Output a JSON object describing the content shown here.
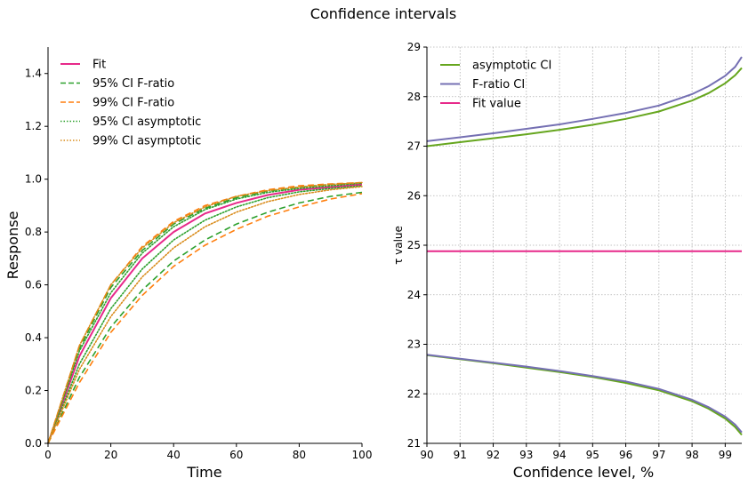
{
  "title": "Confidence intervals",
  "colors": {
    "fit": "#e7298a",
    "f95": "#1b9e77",
    "f99": "#d95f02",
    "asym_green": "#66a61e",
    "fratio_purple": "#7570b3"
  },
  "chart_data": [
    {
      "type": "line",
      "xlabel": "Time",
      "ylabel": "Response",
      "xlim": [
        0,
        100
      ],
      "ylim": [
        0,
        1.5
      ],
      "xticks": [
        "0",
        "20",
        "40",
        "60",
        "80",
        "100"
      ],
      "yticks": [
        "0.0",
        "0.2",
        "0.4",
        "0.6",
        "0.8",
        "1.0",
        "1.2",
        "1.4"
      ],
      "grid": false,
      "legend_position": "top-left",
      "x": [
        0,
        10,
        20,
        30,
        40,
        50,
        60,
        70,
        80,
        90,
        100
      ],
      "series": [
        {
          "name": "Fit",
          "style": "solid",
          "color": "#e7298a",
          "values": [
            0,
            0.33,
            0.55,
            0.7,
            0.8,
            0.87,
            0.91,
            0.94,
            0.96,
            0.97,
            0.98
          ]
        },
        {
          "name": "95% CI F-ratio",
          "style": "dashed",
          "color": "#2ca02c",
          "values": [
            0,
            0.36,
            0.59,
            0.73,
            0.83,
            0.89,
            0.93,
            0.955,
            0.97,
            0.98,
            0.985
          ]
        },
        {
          "name": "95% CI F-ratio",
          "style": "dashed",
          "color": "#2ca02c",
          "values": [
            0,
            0.25,
            0.44,
            0.58,
            0.69,
            0.77,
            0.83,
            0.875,
            0.91,
            0.935,
            0.95
          ]
        },
        {
          "name": "99% CI F-ratio",
          "style": "dashed",
          "color": "#ff7f0e",
          "values": [
            0,
            0.37,
            0.6,
            0.745,
            0.84,
            0.9,
            0.935,
            0.96,
            0.975,
            0.982,
            0.987
          ]
        },
        {
          "name": "99% CI F-ratio",
          "style": "dashed",
          "color": "#ff7f0e",
          "values": [
            0,
            0.23,
            0.42,
            0.56,
            0.67,
            0.75,
            0.81,
            0.86,
            0.895,
            0.925,
            0.945
          ]
        },
        {
          "name": "95% CI asymptotic",
          "style": "dotted",
          "color": "#2ca02c",
          "values": [
            0,
            0.35,
            0.57,
            0.72,
            0.82,
            0.885,
            0.925,
            0.95,
            0.965,
            0.975,
            0.985
          ]
        },
        {
          "name": "95% CI asymptotic",
          "style": "dotted",
          "color": "#2ca02c",
          "values": [
            0,
            0.3,
            0.51,
            0.66,
            0.77,
            0.845,
            0.895,
            0.93,
            0.952,
            0.965,
            0.975
          ]
        },
        {
          "name": "99% CI asymptotic",
          "style": "dotted",
          "color": "#d98b1a",
          "values": [
            0,
            0.37,
            0.6,
            0.74,
            0.835,
            0.895,
            0.935,
            0.957,
            0.97,
            0.98,
            0.987
          ]
        },
        {
          "name": "99% CI asymptotic",
          "style": "dotted",
          "color": "#d98b1a",
          "values": [
            0,
            0.28,
            0.48,
            0.63,
            0.74,
            0.82,
            0.875,
            0.915,
            0.942,
            0.96,
            0.972
          ]
        }
      ],
      "legend": [
        {
          "label": "Fit",
          "style": "solid",
          "color": "#e7298a"
        },
        {
          "label": "95% CI F-ratio",
          "style": "dashed",
          "color": "#2ca02c"
        },
        {
          "label": "99% CI F-ratio",
          "style": "dashed",
          "color": "#ff7f0e"
        },
        {
          "label": "95% CI asymptotic",
          "style": "dotted",
          "color": "#2ca02c"
        },
        {
          "label": "99% CI asymptotic",
          "style": "dotted",
          "color": "#d98b1a"
        }
      ]
    },
    {
      "type": "line",
      "xlabel": "Confidence level, %",
      "ylabel": "τ value",
      "xlim": [
        90,
        99.5
      ],
      "ylim": [
        21,
        29
      ],
      "xticks": [
        "90",
        "91",
        "92",
        "93",
        "94",
        "95",
        "96",
        "97",
        "98",
        "99"
      ],
      "yticks": [
        "21",
        "22",
        "23",
        "24",
        "25",
        "26",
        "27",
        "28",
        "29"
      ],
      "grid": true,
      "legend_position": "top-left",
      "x": [
        90,
        91,
        92,
        93,
        94,
        95,
        96,
        97,
        98,
        98.5,
        99,
        99.3,
        99.5
      ],
      "series": [
        {
          "name": "asymptotic CI",
          "style": "solid",
          "color": "#66a61e",
          "values": [
            27.0,
            27.08,
            27.16,
            27.24,
            27.33,
            27.43,
            27.55,
            27.7,
            27.92,
            28.07,
            28.27,
            28.43,
            28.58
          ]
        },
        {
          "name": "asymptotic CI",
          "style": "solid",
          "color": "#66a61e",
          "values": [
            22.78,
            22.7,
            22.62,
            22.53,
            22.44,
            22.34,
            22.22,
            22.07,
            21.85,
            21.7,
            21.5,
            21.33,
            21.17
          ]
        },
        {
          "name": "F-ratio CI",
          "style": "solid",
          "color": "#7570b3",
          "values": [
            27.1,
            27.18,
            27.26,
            27.35,
            27.44,
            27.55,
            27.67,
            27.82,
            28.05,
            28.21,
            28.42,
            28.6,
            28.8
          ]
        },
        {
          "name": "F-ratio CI",
          "style": "solid",
          "color": "#7570b3",
          "values": [
            22.79,
            22.71,
            22.63,
            22.55,
            22.46,
            22.36,
            22.25,
            22.1,
            21.88,
            21.73,
            21.54,
            21.38,
            21.22
          ]
        },
        {
          "name": "Fit value",
          "style": "solid",
          "color": "#e7298a",
          "values": [
            24.88,
            24.88,
            24.88,
            24.88,
            24.88,
            24.88,
            24.88,
            24.88,
            24.88,
            24.88,
            24.88,
            24.88,
            24.88
          ]
        }
      ],
      "legend": [
        {
          "label": "asymptotic CI",
          "style": "solid",
          "color": "#66a61e"
        },
        {
          "label": "F-ratio CI",
          "style": "solid",
          "color": "#7570b3"
        },
        {
          "label": "Fit value",
          "style": "solid",
          "color": "#e7298a"
        }
      ]
    }
  ]
}
